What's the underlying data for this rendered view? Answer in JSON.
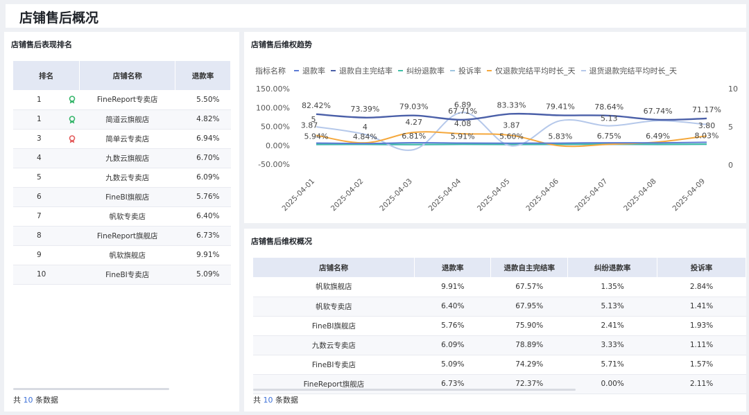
{
  "page_title": "店铺售后概况",
  "ranking": {
    "title": "店铺售后表现排名",
    "columns": [
      "排名",
      "店铺名称",
      "退款率"
    ],
    "rows": [
      {
        "rank": "1",
        "name": "FineReport专卖店",
        "rate": "5.50%",
        "medal": "green"
      },
      {
        "rank": "1",
        "name": "简道云旗舰店",
        "rate": "4.82%",
        "medal": "green"
      },
      {
        "rank": "3",
        "name": "简单云专卖店",
        "rate": "6.94%",
        "medal": "red"
      },
      {
        "rank": "4",
        "name": "九数云旗舰店",
        "rate": "6.70%",
        "medal": ""
      },
      {
        "rank": "5",
        "name": "九数云专卖店",
        "rate": "6.09%",
        "medal": ""
      },
      {
        "rank": "6",
        "name": "FineBI旗舰店",
        "rate": "5.76%",
        "medal": ""
      },
      {
        "rank": "7",
        "name": "帆软专卖店",
        "rate": "6.40%",
        "medal": ""
      },
      {
        "rank": "8",
        "name": "FineReport旗舰店",
        "rate": "6.73%",
        "medal": ""
      },
      {
        "rank": "9",
        "name": "帆软旗舰店",
        "rate": "9.91%",
        "medal": ""
      },
      {
        "rank": "10",
        "name": "FineBI专卖店",
        "rate": "5.09%",
        "medal": ""
      }
    ],
    "footer_prefix": "共",
    "footer_count": "10",
    "footer_suffix": "条数据"
  },
  "trend": {
    "title": "店铺售后维权趋势",
    "legend_title": "指标名称",
    "colors": {
      "refund_rate": "#5b7bd5",
      "self_complete": "#4a5fa8",
      "dispute": "#3fbfa6",
      "complaint": "#9ec5e0",
      "refund_only_days": "#f5a83c",
      "return_refund_days": "#b5c8ea"
    },
    "chart_data": {
      "type": "line",
      "categories": [
        "2025-04-01",
        "2025-04-02",
        "2025-04-03",
        "2025-04-04",
        "2025-04-05",
        "2025-04-06",
        "2025-04-07",
        "2025-04-08",
        "2025-04-09"
      ],
      "y_left_ticks": [
        "150.00%",
        "100.00%",
        "50.00%",
        "0.00%",
        "-50.00%"
      ],
      "y_left_range": [
        -50,
        150
      ],
      "y_right_ticks": [
        "10",
        "5",
        "0"
      ],
      "y_right_range": [
        0,
        10
      ],
      "series": [
        {
          "key": "refund_rate",
          "name": "退款率",
          "axis": "left",
          "values": [
            5.94,
            4.84,
            6.81,
            5.91,
            5.6,
            5.83,
            6.75,
            6.49,
            8.03
          ],
          "labels": [
            "5.94%",
            "4.84%",
            "6.81%",
            "5.91%",
            "5.60%",
            "5.83%",
            "6.75%",
            "6.49%",
            "8.03%"
          ]
        },
        {
          "key": "self_complete",
          "name": "退款自主完结率",
          "axis": "left",
          "values": [
            82.42,
            73.39,
            79.03,
            67.71,
            83.33,
            79.41,
            78.64,
            67.74,
            71.17
          ],
          "labels": [
            "82.42%",
            "73.39%",
            "79.03%",
            "67.71%",
            "83.33%",
            "79.41%",
            "78.64%",
            "67.74%",
            "71.17%"
          ]
        },
        {
          "key": "dispute",
          "name": "纠纷退款率",
          "axis": "left",
          "values": [
            2.5,
            2.8,
            2.2,
            3.0,
            2.6,
            2.9,
            3.1,
            2.7,
            3.2
          ],
          "labels": []
        },
        {
          "key": "complaint",
          "name": "投诉率",
          "axis": "left",
          "values": [
            1.5,
            1.8,
            1.2,
            2.0,
            1.6,
            1.9,
            2.1,
            1.7,
            2.2
          ],
          "labels": []
        },
        {
          "key": "refund_only_days",
          "name": "仅退款完结平均时长_天",
          "axis": "right",
          "values": [
            3.87,
            2.9,
            4.27,
            4.08,
            3.87,
            2.5,
            2.7,
            3.0,
            3.8
          ],
          "labels": [
            "3.87",
            "",
            "4.27",
            "4.08",
            "3.87",
            "",
            "",
            "",
            "3.80"
          ]
        },
        {
          "key": "return_refund_days",
          "name": "退货退款完结平均时长_天",
          "axis": "right",
          "values": [
            5,
            4,
            2.0,
            6.89,
            2.5,
            5.8,
            5.13,
            5.8,
            5.3
          ],
          "labels": [
            "5",
            "4",
            "",
            "6.89",
            "",
            "",
            "5.13",
            "",
            ""
          ]
        }
      ]
    }
  },
  "overview": {
    "title": "店铺售后维权概况",
    "columns": [
      "店铺名称",
      "退款率",
      "退款自主完结率",
      "纠纷退款率",
      "投诉率"
    ],
    "rows": [
      [
        "帆软旗舰店",
        "9.91%",
        "67.57%",
        "1.35%",
        "2.84%"
      ],
      [
        "帆软专卖店",
        "6.40%",
        "67.95%",
        "5.13%",
        "1.41%"
      ],
      [
        "FineBI旗舰店",
        "5.76%",
        "75.90%",
        "2.41%",
        "1.93%"
      ],
      [
        "九数云专卖店",
        "6.09%",
        "78.89%",
        "3.33%",
        "1.11%"
      ],
      [
        "FineBI专卖店",
        "5.09%",
        "74.29%",
        "5.71%",
        "1.57%"
      ],
      [
        "FineReport旗舰店",
        "6.73%",
        "72.37%",
        "0.00%",
        "2.11%"
      ]
    ],
    "footer_prefix": "共",
    "footer_count": "10",
    "footer_suffix": "条数据"
  }
}
